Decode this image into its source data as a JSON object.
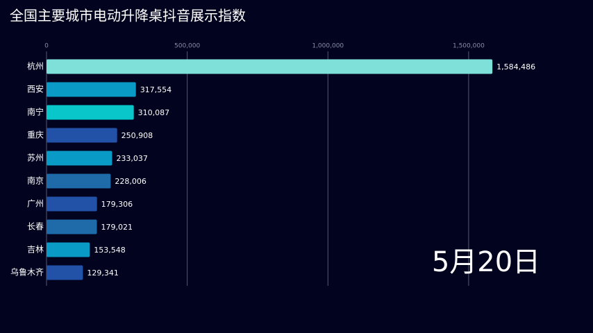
{
  "chart_data": {
    "type": "bar",
    "orientation": "horizontal",
    "title": "全国主要城市电动升降桌抖音展示指数",
    "annotation": "5月20日",
    "categories": [
      "杭州",
      "西安",
      "南宁",
      "重庆",
      "苏州",
      "南京",
      "广州",
      "长春",
      "吉林",
      "乌鲁木齐"
    ],
    "values": [
      1584486,
      317554,
      310087,
      250908,
      233037,
      228006,
      179306,
      179021,
      153548,
      129341
    ],
    "value_labels": [
      "1,584,486",
      "317,554",
      "310,087",
      "250,908",
      "233,037",
      "228,006",
      "179,306",
      "179,021",
      "153,548",
      "129,341"
    ],
    "colors": [
      "#7fe0da",
      "#0a9ac6",
      "#08c6c9",
      "#2152a8",
      "#0a9ac6",
      "#1f6aa9",
      "#2152a8",
      "#1f6aa9",
      "#0a9ac6",
      "#2152a8"
    ],
    "xlim": [
      0,
      1900000
    ],
    "xticks": [
      0,
      {
        "value": 500000,
        "label": "500,000"
      },
      {
        "value": 1000000,
        "label": "1,000,000"
      },
      {
        "value": 1500000,
        "label": "1,500,000"
      }
    ],
    "grid": true
  }
}
